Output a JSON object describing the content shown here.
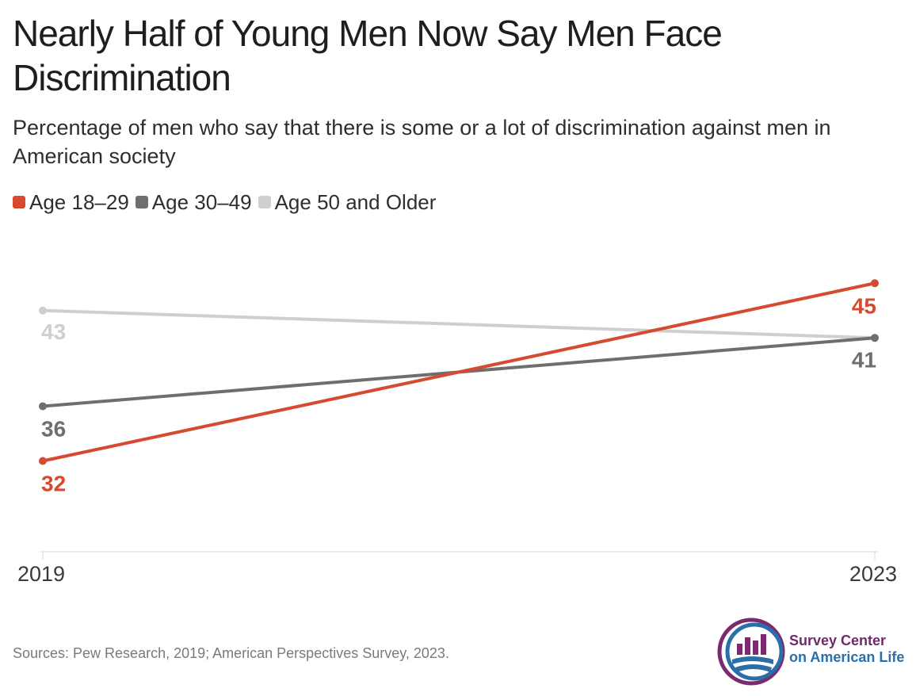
{
  "title": "Nearly Half of Young Men Now Say Men Face Discrimination",
  "subtitle": "Percentage of men who say that there is some or a lot of discrimination against men in American society",
  "source": "Sources: Pew Research, 2019; American Perspectives Survey, 2023.",
  "logo": {
    "line1": "Survey Center",
    "line2": "on American Life",
    "icon": "bar-chart-globe-logo"
  },
  "colors": {
    "age_18_29": "#d64a2f",
    "age_30_49": "#6e6e6e",
    "age_50_older": "#cfcfcf",
    "logo_purple": "#7a2a6e",
    "logo_blue": "#2a6fa8"
  },
  "chart_data": {
    "type": "line",
    "title": "Nearly Half of Young Men Now Say Men Face Discrimination",
    "subtitle": "Percentage of men who say that there is some or a lot of discrimination against men in American society",
    "x": [
      "2019",
      "2023"
    ],
    "ylim": [
      25,
      50
    ],
    "grid": false,
    "legend_position": "top-left",
    "series": [
      {
        "name": "Age 18–29",
        "values": [
          32,
          45
        ],
        "labels": [
          "32",
          "45"
        ],
        "color": "#d64a2f"
      },
      {
        "name": "Age 30–49",
        "values": [
          36,
          41
        ],
        "labels": [
          "36",
          "41"
        ],
        "color": "#6e6e6e"
      },
      {
        "name": "Age 50 and Older",
        "values": [
          43,
          41
        ],
        "labels": [
          "43",
          ""
        ],
        "color": "#cfcfcf"
      }
    ]
  }
}
